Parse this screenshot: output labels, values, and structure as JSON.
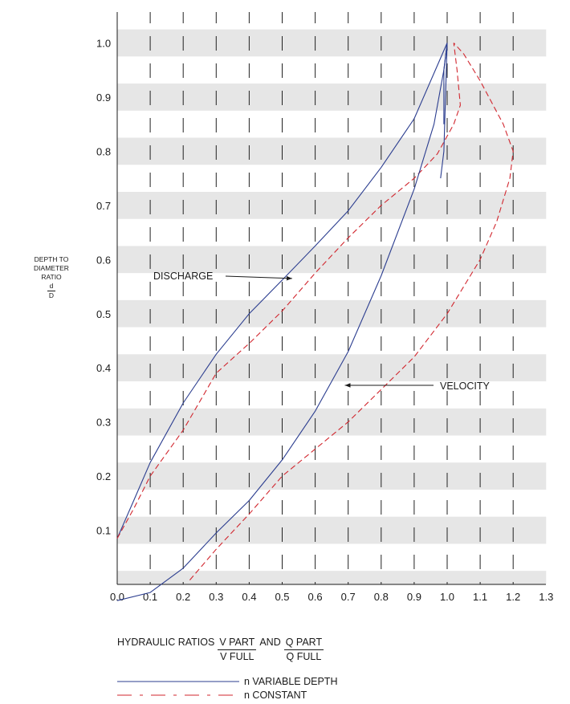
{
  "chart_data": {
    "type": "line",
    "ylabel": {
      "lines": [
        "DEPTH TO",
        "DIAMETER",
        "RATIO"
      ],
      "fraction": {
        "numerator": "d",
        "denominator": "D"
      }
    },
    "xlim": [
      0,
      1.3
    ],
    "ylim": [
      0,
      1.0
    ],
    "x_ticks": [
      "0.0",
      "0.1",
      "0.2",
      "0.3",
      "0.4",
      "0.5",
      "0.6",
      "0.7",
      "0.8",
      "0.9",
      "1.0",
      "1.1",
      "1.2",
      "1.3"
    ],
    "y_ticks": [
      "0.1",
      "0.2",
      "0.3",
      "0.4",
      "0.5",
      "0.6",
      "0.7",
      "0.8",
      "0.9",
      "1.0"
    ],
    "background": "alternating gray horizontal bands every 0.05; vertical dashed grid at each 0.1",
    "colors": {
      "variable": "#2b3d8f",
      "constant": "#d1262e",
      "band": "#e6e6e6",
      "grid": "#222222"
    },
    "series": [
      {
        "name": "DISCHARGE n VARIABLE DEPTH",
        "style": "solid",
        "points": [
          [
            0.0,
            0.085
          ],
          [
            0.05,
            0.155
          ],
          [
            0.1,
            0.225
          ],
          [
            0.2,
            0.335
          ],
          [
            0.3,
            0.425
          ],
          [
            0.4,
            0.5
          ],
          [
            0.5,
            0.562
          ],
          [
            0.6,
            0.625
          ],
          [
            0.7,
            0.69
          ],
          [
            0.8,
            0.77
          ],
          [
            0.9,
            0.86
          ],
          [
            1.0,
            1.0
          ]
        ]
      },
      {
        "name": "DISCHARGE n CONSTANT",
        "style": "dashed",
        "points": [
          [
            0.0,
            0.085
          ],
          [
            0.05,
            0.14
          ],
          [
            0.1,
            0.2
          ],
          [
            0.2,
            0.285
          ],
          [
            0.3,
            0.39
          ],
          [
            0.4,
            0.445
          ],
          [
            0.5,
            0.505
          ],
          [
            0.6,
            0.575
          ],
          [
            0.7,
            0.64
          ],
          [
            0.8,
            0.7
          ],
          [
            0.9,
            0.75
          ],
          [
            0.97,
            0.795
          ],
          [
            1.02,
            0.85
          ],
          [
            1.04,
            0.885
          ],
          [
            1.03,
            0.95
          ],
          [
            1.02,
            1.0
          ]
        ]
      },
      {
        "name": "VELOCITY n VARIABLE DEPTH",
        "style": "solid",
        "points": [
          [
            0.0,
            -0.03
          ],
          [
            0.1,
            -0.015
          ],
          [
            0.2,
            0.03
          ],
          [
            0.3,
            0.095
          ],
          [
            0.4,
            0.155
          ],
          [
            0.5,
            0.23
          ],
          [
            0.6,
            0.32
          ],
          [
            0.7,
            0.43
          ],
          [
            0.8,
            0.57
          ],
          [
            0.9,
            0.73
          ],
          [
            0.96,
            0.85
          ],
          [
            0.99,
            0.95
          ],
          [
            1.0,
            1.0
          ]
        ]
      },
      {
        "name": "VELOCITY n CONSTANT",
        "style": "dashed",
        "points": [
          [
            0.22,
            0.008
          ],
          [
            0.3,
            0.065
          ],
          [
            0.4,
            0.13
          ],
          [
            0.5,
            0.2
          ],
          [
            0.6,
            0.25
          ],
          [
            0.7,
            0.3
          ],
          [
            0.8,
            0.36
          ],
          [
            0.9,
            0.42
          ],
          [
            1.0,
            0.5
          ],
          [
            1.1,
            0.6
          ],
          [
            1.15,
            0.67
          ],
          [
            1.19,
            0.75
          ],
          [
            1.2,
            0.8
          ],
          [
            1.17,
            0.85
          ],
          [
            1.1,
            0.93
          ],
          [
            1.05,
            0.98
          ],
          [
            1.02,
            1.0
          ]
        ]
      },
      {
        "name": "DISCHARGE end segment",
        "style": "solid",
        "points": [
          [
            1.0,
            1.0
          ],
          [
            0.99,
            0.95
          ],
          [
            0.99,
            0.9
          ],
          [
            0.99,
            0.85
          ]
        ]
      },
      {
        "name": "VELOCITY tail segment",
        "style": "solid",
        "points": [
          [
            1.0,
            1.0
          ],
          [
            0.995,
            0.9
          ],
          [
            0.99,
            0.8
          ],
          [
            0.98,
            0.75
          ]
        ]
      }
    ],
    "annotations": [
      {
        "text": "DISCHARGE",
        "arrow_to": [
          0.53,
          0.565
        ]
      },
      {
        "text": "VELOCITY",
        "arrow_to": [
          0.69,
          0.375
        ]
      }
    ],
    "footer": {
      "prefix": "HYDRAULIC RATIOS",
      "frac1": {
        "num": "V PART",
        "den": "V FULL"
      },
      "and": "AND",
      "frac2": {
        "num": "Q PART",
        "den": "Q FULL"
      }
    },
    "legend": [
      {
        "label": "n VARIABLE DEPTH",
        "style": "solid"
      },
      {
        "label": "n CONSTANT",
        "style": "dashed"
      }
    ]
  }
}
